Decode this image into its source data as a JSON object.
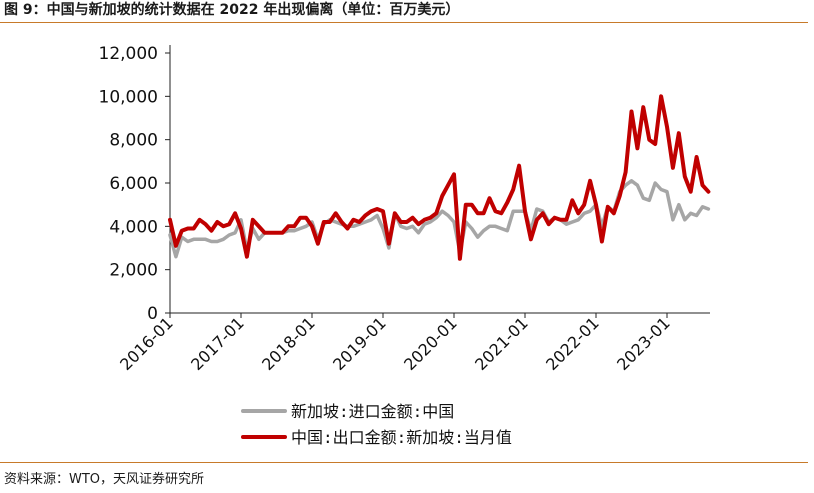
{
  "title": "图 9：中国与新加坡的统计数据在 2022 年出现偏离（单位：百万美元）",
  "source": "资料来源：WTO，天风证券研究所",
  "chart_data": {
    "type": "line",
    "ylim": [
      0,
      12000
    ],
    "yticks": [
      0,
      2000,
      4000,
      6000,
      8000,
      10000,
      12000
    ],
    "ytick_labels": [
      "0",
      "2,000",
      "4,000",
      "6,000",
      "8,000",
      "10,000",
      "12,000"
    ],
    "xtick_labels": [
      "2016-01",
      "2017-01",
      "2018-01",
      "2019-01",
      "2020-01",
      "2021-01",
      "2022-01",
      "2023-01"
    ],
    "x_start": "2016-01",
    "grid": false,
    "legend_position": "bottom",
    "series": [
      {
        "name": "新加坡:进口金额:中国",
        "color": "#a6a6a6",
        "values": [
          3600,
          2600,
          3500,
          3300,
          3400,
          3400,
          3400,
          3300,
          3300,
          3400,
          3600,
          3700,
          4300,
          2900,
          3900,
          3400,
          3700,
          3700,
          3700,
          3700,
          3800,
          3800,
          3900,
          4000,
          4200,
          3400,
          4100,
          4300,
          4200,
          4100,
          4000,
          4000,
          4100,
          4200,
          4300,
          4500,
          3900,
          3000,
          4600,
          4000,
          3900,
          4000,
          3700,
          4100,
          4200,
          4400,
          4700,
          4500,
          4200,
          2800,
          4200,
          3900,
          3500,
          3800,
          4000,
          4000,
          3900,
          3800,
          4700,
          4700,
          4700,
          3800,
          4800,
          4700,
          4200,
          4400,
          4300,
          4100,
          4200,
          4300,
          4600,
          4700,
          5000,
          4000,
          4900,
          4700,
          5600,
          5900,
          6100,
          5900,
          5300,
          5200,
          6000,
          5700,
          5600,
          4300,
          5000,
          4300,
          4600,
          4500,
          4900,
          4800
        ]
      },
      {
        "name": "中国:出口金额:新加坡:当月值",
        "color": "#c00000",
        "values": [
          4300,
          3100,
          3800,
          3900,
          3900,
          4300,
          4100,
          3800,
          4200,
          4000,
          4100,
          4600,
          3900,
          2600,
          4300,
          4000,
          3700,
          3700,
          3700,
          3700,
          4000,
          4000,
          4400,
          4400,
          4000,
          3200,
          4200,
          4200,
          4600,
          4200,
          3900,
          4300,
          4200,
          4500,
          4700,
          4800,
          4700,
          3200,
          4600,
          4200,
          4200,
          4400,
          4100,
          4300,
          4400,
          4600,
          5400,
          5900,
          6400,
          2500,
          5000,
          5000,
          4600,
          4600,
          5300,
          4700,
          4600,
          5100,
          5700,
          6800,
          4700,
          3400,
          4300,
          4600,
          4100,
          4400,
          4300,
          4300,
          5200,
          4600,
          5000,
          6100,
          5000,
          3300,
          4900,
          4600,
          5400,
          6500,
          9300,
          7600,
          9500,
          8000,
          7800,
          10000,
          8600,
          6700,
          8300,
          6300,
          5600,
          7200,
          5900,
          5600
        ]
      }
    ]
  }
}
